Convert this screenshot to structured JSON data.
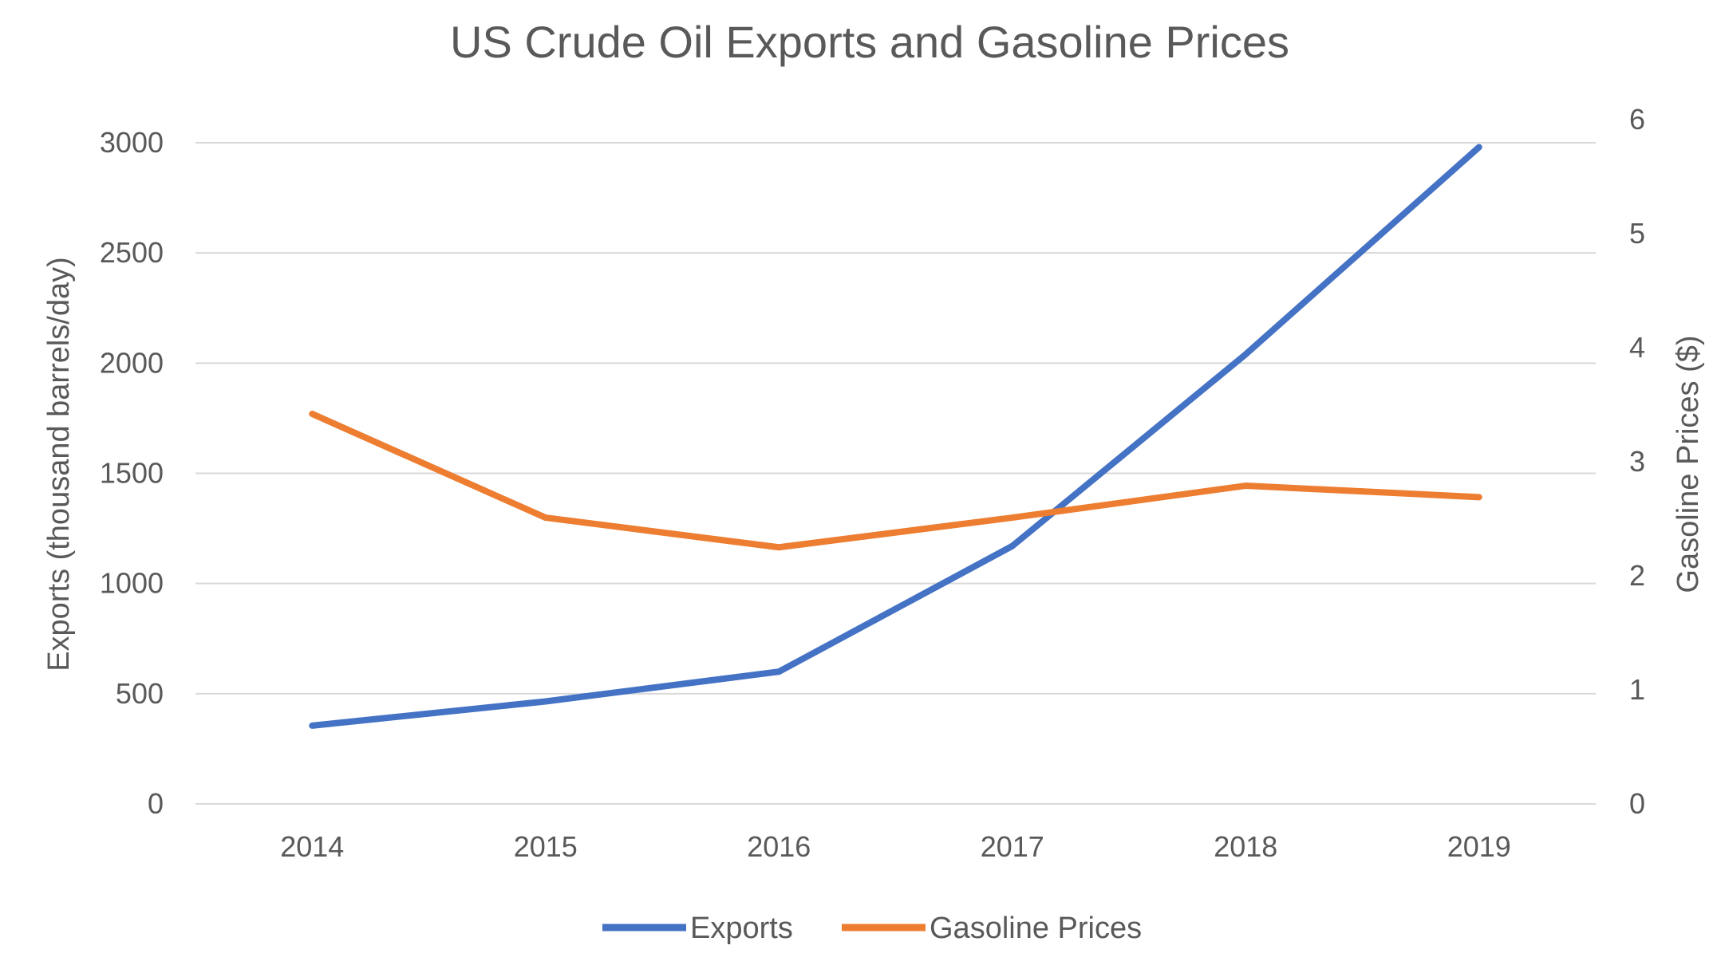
{
  "chart_data": {
    "type": "line",
    "title": "US Crude Oil Exports and Gasoline Prices",
    "xlabel": "",
    "ylabel": "Exports (thousand barrels/day)",
    "y2label": "Gasoline Prices ($)",
    "categories": [
      "2014",
      "2015",
      "2016",
      "2017",
      "2018",
      "2019"
    ],
    "ylim": [
      0,
      3000
    ],
    "y2lim": [
      0,
      6
    ],
    "yticks": [
      "0",
      "500",
      "1000",
      "1500",
      "2000",
      "2500",
      "3000"
    ],
    "y2ticks": [
      "0",
      "1",
      "2",
      "3",
      "4",
      "5",
      "6"
    ],
    "grid": true,
    "legend_position": "bottom",
    "series": [
      {
        "name": "Exports",
        "axis": "left",
        "color": "#4472c4",
        "values": [
          355,
          465,
          600,
          1170,
          2040,
          2980
        ]
      },
      {
        "name": "Gasoline Prices",
        "axis": "right",
        "color": "#ed7d31",
        "values": [
          3.42,
          2.51,
          2.25,
          2.51,
          2.79,
          2.69
        ]
      }
    ]
  }
}
